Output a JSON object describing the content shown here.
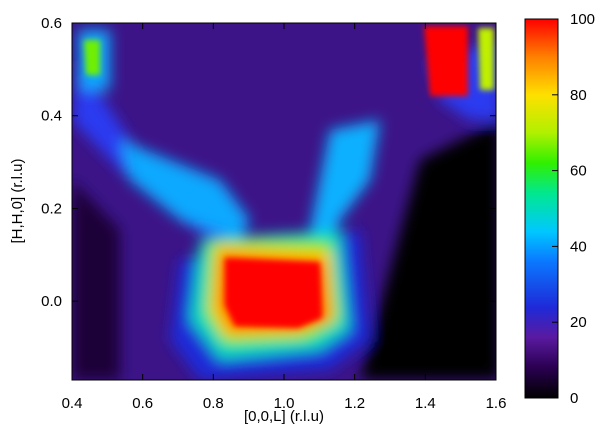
{
  "chart_data": {
    "type": "heatmap",
    "title": "",
    "xlabel": "[0,0,L] (r.l.u)",
    "ylabel": "[H,H,0] (r.l.u)",
    "xlim": [
      0.4,
      1.6
    ],
    "ylim": [
      -0.17,
      0.6
    ],
    "x_ticks": [
      "0.4",
      "0.6",
      "0.8",
      "1.0",
      "1.2",
      "1.4",
      "1.6"
    ],
    "y_ticks": [
      "0.0",
      "0.2",
      "0.4",
      "0.6"
    ],
    "colorbar": {
      "range": [
        0,
        100
      ],
      "ticks": [
        "0",
        "20",
        "40",
        "60",
        "80",
        "100"
      ],
      "colormap": [
        "#000000",
        "#2a0050",
        "#5a1aa0",
        "#1e2ad8",
        "#00c8ff",
        "#00e890",
        "#70f000",
        "#ffe000",
        "#ff8000",
        "#ff0000"
      ]
    },
    "features": [
      {
        "label": "central peak",
        "x_range": [
          0.86,
          1.07
        ],
        "y_range": [
          -0.07,
          0.1
        ],
        "value": 100
      },
      {
        "label": "upper-right peak",
        "x_range": [
          1.41,
          1.52
        ],
        "y_range": [
          0.45,
          0.6
        ],
        "value": 100
      },
      {
        "label": "diagonal streak",
        "x_range": [
          0.45,
          0.8
        ],
        "y_range": [
          0.1,
          0.5
        ],
        "value": 38
      },
      {
        "label": "right arm",
        "x_range": [
          1.1,
          1.22
        ],
        "y_range": [
          0.1,
          0.35
        ],
        "value": 40
      },
      {
        "label": "background",
        "value": 12
      }
    ]
  }
}
